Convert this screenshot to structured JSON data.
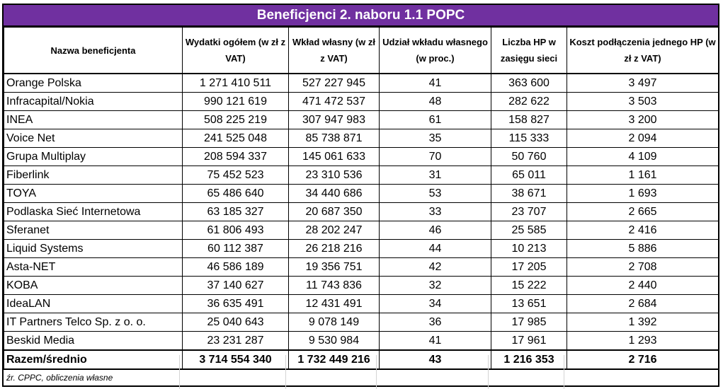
{
  "title": "Beneficjenci 2. naboru 1.1 POPC",
  "headers": [
    "Nazwa beneficjenta",
    "Wydatki ogółem (w zł z VAT)",
    "Wkład własny (w zł z VAT)",
    "Udział wkładu własnego (w proc.)",
    "Liczba HP w zasięgu sieci",
    "Koszt podłączenia jednego HP (w zł z VAT)"
  ],
  "rows": [
    [
      "Orange Polska",
      "1 271 410 511",
      "527 227 945",
      "41",
      "363 600",
      "3 497"
    ],
    [
      "Infracapital/Nokia",
      "990 121 619",
      "471 472 537",
      "48",
      "282 622",
      "3 503"
    ],
    [
      "INEA",
      "508 225 219",
      "307 947 983",
      "61",
      "158 827",
      "3 200"
    ],
    [
      "Voice Net",
      "241 525 048",
      "85 738 871",
      "35",
      "115 333",
      "2 094"
    ],
    [
      "Grupa Multiplay",
      "208 594 337",
      "145 061 633",
      "70",
      "50 760",
      "4 109"
    ],
    [
      "Fiberlink",
      "75 452 523",
      "23 310 536",
      "31",
      "65 011",
      "1 161"
    ],
    [
      "TOYA",
      "65 486 640",
      "34 440 686",
      "53",
      "38 671",
      "1 693"
    ],
    [
      "Podlaska Sieć Internetowa",
      "63 185 327",
      "20 687 350",
      "33",
      "23 707",
      "2 665"
    ],
    [
      "Sferanet",
      "61 806 493",
      "28 202 247",
      "46",
      "25 585",
      "2 416"
    ],
    [
      "Liquid Systems",
      "60 112 387",
      "26 218 216",
      "44",
      "10 213",
      "5 886"
    ],
    [
      "Asta-NET",
      "46 586 189",
      "19 356 751",
      "42",
      "17 205",
      "2 708"
    ],
    [
      "KOBA",
      "37 140 627",
      "11 743 836",
      "32",
      "15 222",
      "2 440"
    ],
    [
      "IdeaLAN",
      "36 635 491",
      "12 431 491",
      "34",
      "13 651",
      "2 684"
    ],
    [
      "IT Partners Telco Sp. z o. o.",
      "25 040 643",
      "9 078 149",
      "36",
      "17 985",
      "1 392"
    ],
    [
      "Beskid Media",
      "23 231 287",
      "9 530 984",
      "41",
      "17 961",
      "1 293"
    ]
  ],
  "total": [
    "Razem/średnio",
    "3 714 554 340",
    "1 732 449 216",
    "43",
    "1 216 353",
    "2 716"
  ],
  "source": "źr. CPPC, obliczenia własne",
  "colors": {
    "title_bg": "#7030a0",
    "title_text": "#ffffff",
    "grid": "#000000"
  }
}
